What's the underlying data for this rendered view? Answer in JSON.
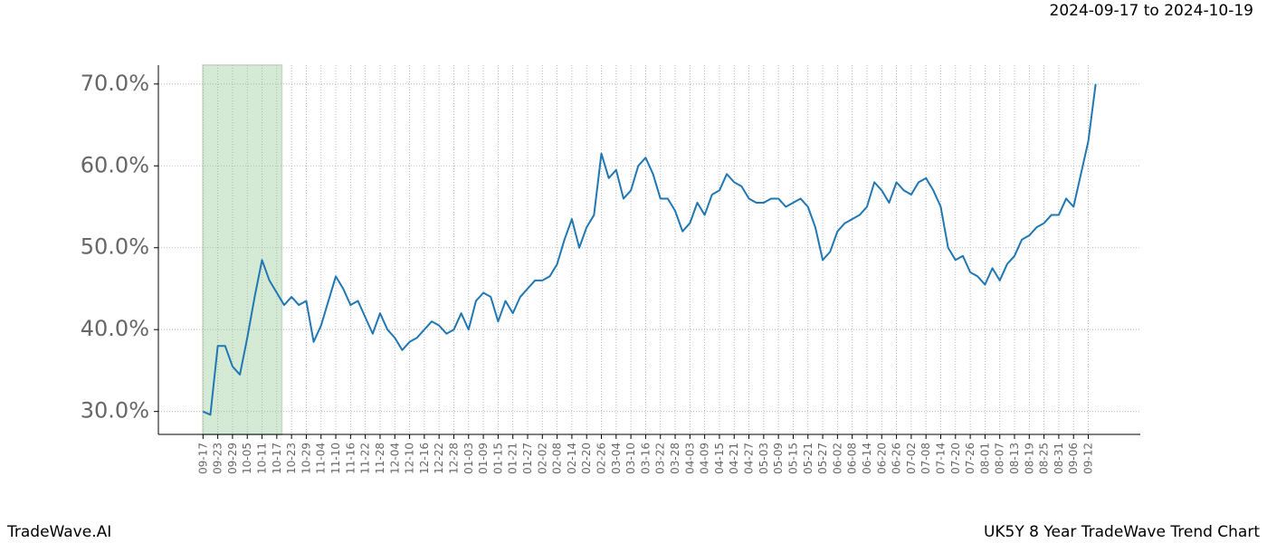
{
  "chart_data": {
    "type": "line",
    "title": "2024-09-17 to 2024-10-19",
    "footer_left": "TradeWave.AI",
    "footer_right": "UK5Y 8 Year TradeWave Trend Chart",
    "color": "#1f77b4",
    "highlight": {
      "start": "09-17",
      "end": "10-19",
      "color": "#d5ead5"
    },
    "grid": true,
    "x": [
      "09-17",
      "09-20",
      "09-23",
      "09-26",
      "09-29",
      "10-02",
      "10-05",
      "10-08",
      "10-11",
      "10-14",
      "10-17",
      "10-20",
      "10-23",
      "10-26",
      "10-29",
      "11-01",
      "11-04",
      "11-07",
      "11-10",
      "11-13",
      "11-16",
      "11-19",
      "11-22",
      "11-25",
      "11-28",
      "12-01",
      "12-04",
      "12-07",
      "12-10",
      "12-13",
      "12-16",
      "12-19",
      "12-22",
      "12-25",
      "12-28",
      "12-31",
      "01-03",
      "01-06",
      "01-09",
      "01-12",
      "01-15",
      "01-18",
      "01-21",
      "01-24",
      "01-27",
      "01-30",
      "02-02",
      "02-05",
      "02-08",
      "02-11",
      "02-14",
      "02-17",
      "02-20",
      "02-23",
      "02-26",
      "03-01",
      "03-04",
      "03-07",
      "03-10",
      "03-13",
      "03-16",
      "03-19",
      "03-22",
      "03-25",
      "03-28",
      "03-31",
      "04-03",
      "04-06",
      "04-09",
      "04-12",
      "04-15",
      "04-18",
      "04-21",
      "04-24",
      "04-27",
      "04-30",
      "05-03",
      "05-06",
      "05-09",
      "05-12",
      "05-15",
      "05-18",
      "05-21",
      "05-24",
      "05-27",
      "05-30",
      "06-02",
      "06-05",
      "06-08",
      "06-11",
      "06-14",
      "06-17",
      "06-20",
      "06-23",
      "06-26",
      "06-29",
      "07-02",
      "07-05",
      "07-08",
      "07-11",
      "07-14",
      "07-17",
      "07-20",
      "07-23",
      "07-26",
      "07-29",
      "08-01",
      "08-04",
      "08-07",
      "08-10",
      "08-13",
      "08-16",
      "08-19",
      "08-22",
      "08-25",
      "08-28",
      "08-31",
      "09-03",
      "09-06",
      "09-09",
      "09-12",
      "09-15"
    ],
    "values": [
      30.0,
      29.6,
      38,
      38,
      35.5,
      34.5,
      39,
      44,
      48.5,
      46,
      44.5,
      43,
      44,
      43,
      43.5,
      38.5,
      40.5,
      43.5,
      46.5,
      45,
      43,
      43.5,
      41.5,
      39.5,
      42,
      40,
      39,
      37.5,
      38.5,
      39,
      40,
      41,
      40.5,
      39.5,
      40,
      42,
      40,
      43.5,
      44.5,
      44,
      41,
      43.5,
      42,
      44,
      45,
      46,
      46,
      46.5,
      48,
      51,
      53.5,
      50,
      52.5,
      54,
      61.5,
      58.5,
      59.5,
      56,
      57,
      60,
      61,
      59,
      56,
      56,
      54.5,
      52,
      53,
      55.5,
      54,
      56.5,
      57,
      59,
      58,
      57.5,
      56,
      55.5,
      55.5,
      56,
      56,
      55,
      55.5,
      56,
      55,
      52.5,
      48.5,
      49.5,
      52,
      53,
      53.5,
      54,
      55,
      58,
      57,
      55.5,
      58,
      57,
      56.5,
      58,
      58.5,
      57,
      55,
      50,
      48.5,
      49,
      47,
      46.5,
      45.5,
      47.5,
      46,
      48,
      49,
      51,
      51.5,
      52.5,
      53,
      54,
      54,
      56,
      55,
      59,
      63,
      70
    ],
    "ylim": [
      27.2,
      72.3
    ],
    "yticks": [
      {
        "value": 30,
        "label": "30.0%"
      },
      {
        "value": 40,
        "label": "40.0%"
      },
      {
        "value": 50,
        "label": "50.0%"
      },
      {
        "value": 60,
        "label": "60.0%"
      },
      {
        "value": 70,
        "label": "70.0%"
      }
    ],
    "xticks": [
      "09-17",
      "09-23",
      "09-29",
      "10-05",
      "10-11",
      "10-17",
      "10-23",
      "10-29",
      "11-04",
      "11-10",
      "11-16",
      "11-22",
      "11-28",
      "12-04",
      "12-10",
      "12-16",
      "12-22",
      "12-28",
      "01-03",
      "01-09",
      "01-15",
      "01-21",
      "01-27",
      "02-02",
      "02-08",
      "02-14",
      "02-20",
      "02-26",
      "03-04",
      "03-10",
      "03-16",
      "03-22",
      "03-28",
      "04-03",
      "04-09",
      "04-15",
      "04-21",
      "04-27",
      "05-03",
      "05-09",
      "05-15",
      "05-21",
      "05-27",
      "06-02",
      "06-08",
      "06-14",
      "06-20",
      "06-26",
      "07-02",
      "07-08",
      "07-14",
      "07-20",
      "07-26",
      "08-01",
      "08-07",
      "08-13",
      "08-19",
      "08-25",
      "08-31",
      "09-06",
      "09-12"
    ]
  }
}
